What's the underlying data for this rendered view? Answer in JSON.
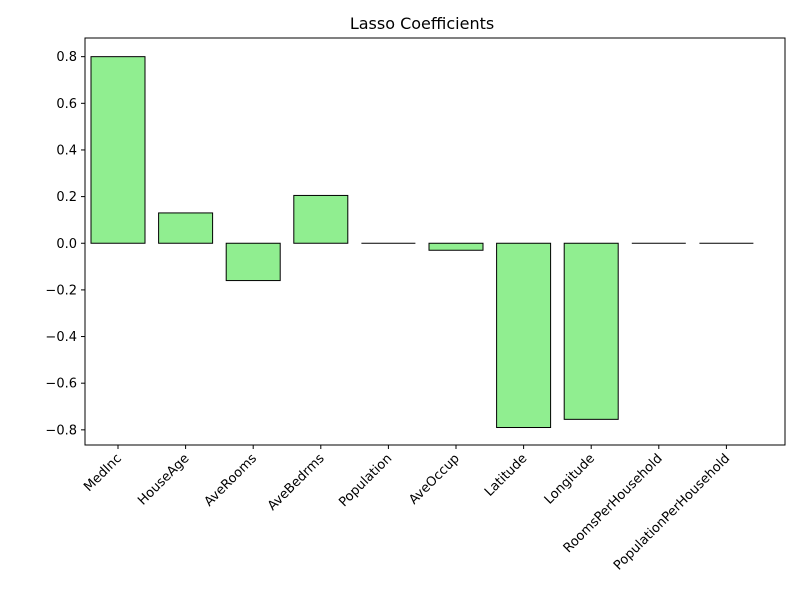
{
  "chart_data": {
    "type": "bar",
    "title": "Lasso Coefficients",
    "xlabel": "",
    "ylabel": "",
    "categories": [
      "MedInc",
      "HouseAge",
      "AveRooms",
      "AveBedrms",
      "Population",
      "AveOccup",
      "Latitude",
      "Longitude",
      "RoomsPerHousehold",
      "PopulationPerHousehold"
    ],
    "values": [
      0.8,
      0.13,
      -0.16,
      0.205,
      0.0,
      -0.03,
      -0.79,
      -0.755,
      0.0,
      0.0
    ],
    "ylim": [
      -0.865,
      0.88
    ],
    "yticks": [
      -0.8,
      -0.6,
      -0.4,
      -0.2,
      0.0,
      0.2,
      0.4,
      0.6,
      0.8
    ],
    "ytick_labels": [
      "−0.8",
      "−0.6",
      "−0.4",
      "−0.2",
      "0.0",
      "0.2",
      "0.4",
      "0.6",
      "0.8"
    ],
    "grid": false,
    "legend": "none",
    "bar_color": "#90ee90",
    "edge_color": "#000000"
  }
}
